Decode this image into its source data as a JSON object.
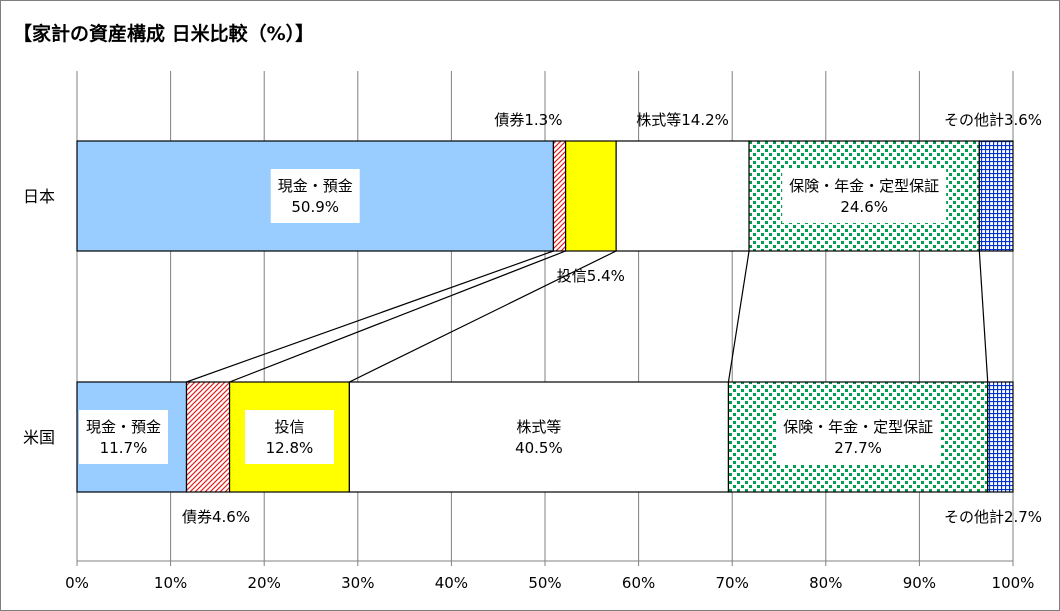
{
  "title": "【家計の資産構成  日米比較（%）】",
  "chart_data": {
    "type": "bar",
    "orientation": "horizontal",
    "stacked": true,
    "title": "【家計の資産構成  日米比較（%）】",
    "xlim": [
      0,
      100
    ],
    "x_ticks": [
      "0%",
      "10%",
      "20%",
      "30%",
      "40%",
      "50%",
      "60%",
      "70%",
      "80%",
      "90%",
      "100%"
    ],
    "grid": true,
    "legend": "none",
    "categories": [
      "日本",
      "米国"
    ],
    "series": [
      {
        "name": "現金・預金",
        "values": [
          50.9,
          11.7
        ],
        "color": "#99ccff",
        "pattern": "solid"
      },
      {
        "name": "債券",
        "values": [
          1.3,
          4.6
        ],
        "color": "#ff0000",
        "pattern": "diagonal"
      },
      {
        "name": "投信",
        "values": [
          5.4,
          12.8
        ],
        "color": "#ffff00",
        "pattern": "solid"
      },
      {
        "name": "株式等",
        "values": [
          14.2,
          40.5
        ],
        "color": "#ffffff",
        "pattern": "solid"
      },
      {
        "name": "保険・年金・定型保証",
        "values": [
          24.6,
          27.7
        ],
        "color": "#00a050",
        "pattern": "dots"
      },
      {
        "name": "その他計",
        "values": [
          3.6,
          2.7
        ],
        "color": "#0033cc",
        "pattern": "grid"
      }
    ],
    "data_labels": [
      {
        "bar": 0,
        "series": 0,
        "lines": [
          "現金・預金",
          "50.9%"
        ],
        "placement": "inside"
      },
      {
        "bar": 0,
        "series": 1,
        "lines": [
          "債券1.3%"
        ],
        "placement": "above"
      },
      {
        "bar": 0,
        "series": 2,
        "lines": [
          "投信5.4%"
        ],
        "placement": "below"
      },
      {
        "bar": 0,
        "series": 3,
        "lines": [
          "株式等14.2%"
        ],
        "placement": "above"
      },
      {
        "bar": 0,
        "series": 4,
        "lines": [
          "保険・年金・定型保証",
          "24.6%"
        ],
        "placement": "inside"
      },
      {
        "bar": 0,
        "series": 5,
        "lines": [
          "その他計3.6%"
        ],
        "placement": "above"
      },
      {
        "bar": 1,
        "series": 0,
        "lines": [
          "現金・預金",
          "11.7%"
        ],
        "placement": "inside"
      },
      {
        "bar": 1,
        "series": 1,
        "lines": [
          "債券4.6%"
        ],
        "placement": "below"
      },
      {
        "bar": 1,
        "series": 2,
        "lines": [
          "投信",
          "12.8%"
        ],
        "placement": "inside"
      },
      {
        "bar": 1,
        "series": 3,
        "lines": [
          "株式等",
          "40.5%"
        ],
        "placement": "inside"
      },
      {
        "bar": 1,
        "series": 4,
        "lines": [
          "保険・年金・定型保証",
          "27.7%"
        ],
        "placement": "inside"
      },
      {
        "bar": 1,
        "series": 5,
        "lines": [
          "その他計2.7%"
        ],
        "placement": "below"
      }
    ]
  }
}
